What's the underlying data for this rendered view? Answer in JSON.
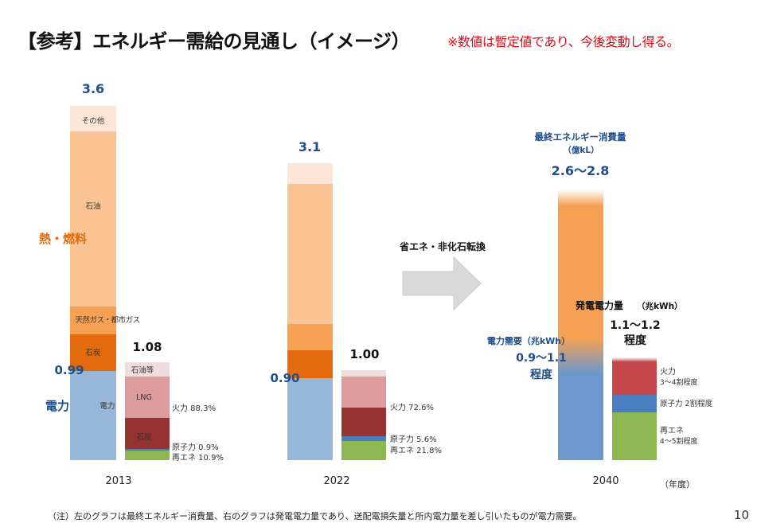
{
  "title": "【参考】エネルギー需給の見通し（イメージ）",
  "title_note": "※数値は暫定値であり、今後変動し得る。",
  "footnote": "（注）左のグラフは最終エネルギー消費量、右のグラフは発電電力量であり、送配電損失量と所内電力量を差し引いたものが電力需要。",
  "page_number": "10",
  "colors": {
    "electricity": "#98b6d8",
    "electricity_2040": "#6d98cd",
    "coal": "#e46b0d",
    "natural_gas": "#f5a053",
    "oil": "#f9c394",
    "other": "#fde6d6",
    "thermal": "#dd9c9c",
    "thermal_coal": "#973233",
    "oil_etc": "#f0dcdc",
    "thermal_2040": "#c4484b",
    "nuclear": "#4a7dbf",
    "renewable": "#8db851",
    "arrow": "#d9d9d9",
    "blue_text": "#1f4e8c",
    "orange_text": "#e46b0d"
  },
  "chart_data": {
    "type": "stacked-bar",
    "unit_label": "（年度）",
    "arrow_label": "省エネ・非化石転換",
    "left_labels": {
      "heat_fuel": "熱・燃料",
      "electricity": "電力"
    },
    "final_energy_consumption": {
      "title": "最終エネルギー消費量",
      "unit": "（億kL）",
      "years": [
        "2013",
        "2022",
        "2040"
      ],
      "totals": [
        "3.6",
        "3.1",
        "2.6〜2.8"
      ],
      "electricity_labels": [
        "0.99",
        "0.90",
        "0.9〜1.1"
      ],
      "electricity_caption_2040": "電力需要（兆kWh）",
      "electricity_degree_2040": "程度",
      "bar_2013": [
        {
          "name": "電力",
          "value": 0.99
        },
        {
          "name": "石炭",
          "value": 0.34
        },
        {
          "name": "天然ガス・都市ガス",
          "value": 0.27
        },
        {
          "name": "石油",
          "value": 1.85
        },
        {
          "name": "その他",
          "value": 0.24
        }
      ],
      "bar_2022": [
        {
          "name": "電力",
          "value": 0.9
        },
        {
          "name": "石炭",
          "value": 0.27
        },
        {
          "name": "天然ガス・都市ガス",
          "value": 0.25
        },
        {
          "name": "石油",
          "value": 1.43
        },
        {
          "name": "その他",
          "value": 0.2
        }
      ],
      "bar_2040": [
        {
          "name": "電力",
          "value": 1.0
        },
        {
          "name": "熱・燃料",
          "value": 1.7
        }
      ],
      "segment_labels_2013": {
        "electricity": "電力",
        "coal": "石炭",
        "natural_gas": "天然ガス・都市ガス",
        "oil": "石油",
        "other": "その他"
      }
    },
    "power_generation": {
      "title": "発電電力量",
      "unit": "（兆kWh）",
      "totals": [
        "1.08",
        "1.00",
        "1.1〜1.2"
      ],
      "degree_2040": "程度",
      "bar_2013": [
        {
          "name": "再エネ",
          "value": 0.118
        },
        {
          "name": "原子力",
          "value": 0.01
        },
        {
          "name": "石炭",
          "value": 0.35
        },
        {
          "name": "LNG",
          "value": 0.43
        },
        {
          "name": "石油等",
          "value": 0.17
        }
      ],
      "bar_2022": [
        {
          "name": "再エネ",
          "value": 0.218
        },
        {
          "name": "原子力",
          "value": 0.056
        },
        {
          "name": "火力(石炭)",
          "value": 0.33
        },
        {
          "name": "火力(LNG)",
          "value": 0.33
        },
        {
          "name": "石油等",
          "value": 0.066
        }
      ],
      "bar_2040": [
        {
          "name": "再エネ",
          "value": 0.5
        },
        {
          "name": "原子力",
          "value": 0.2
        },
        {
          "name": "火力",
          "value": 0.4
        }
      ],
      "inner_labels_2013": {
        "oil": "石油等",
        "lng": "LNG",
        "coal": "石炭"
      },
      "share_labels_2013": [
        "火力 88.3%",
        "原子力 0.9%",
        "再エネ 10.9%"
      ],
      "share_labels_2022": [
        "火力 72.6%",
        "原子力 5.6%",
        "再エネ 21.8%"
      ],
      "share_labels_2040": [
        "火力",
        "3〜4割程度",
        "原子力 2割程度",
        "再エネ",
        "4〜5割程度"
      ]
    }
  }
}
